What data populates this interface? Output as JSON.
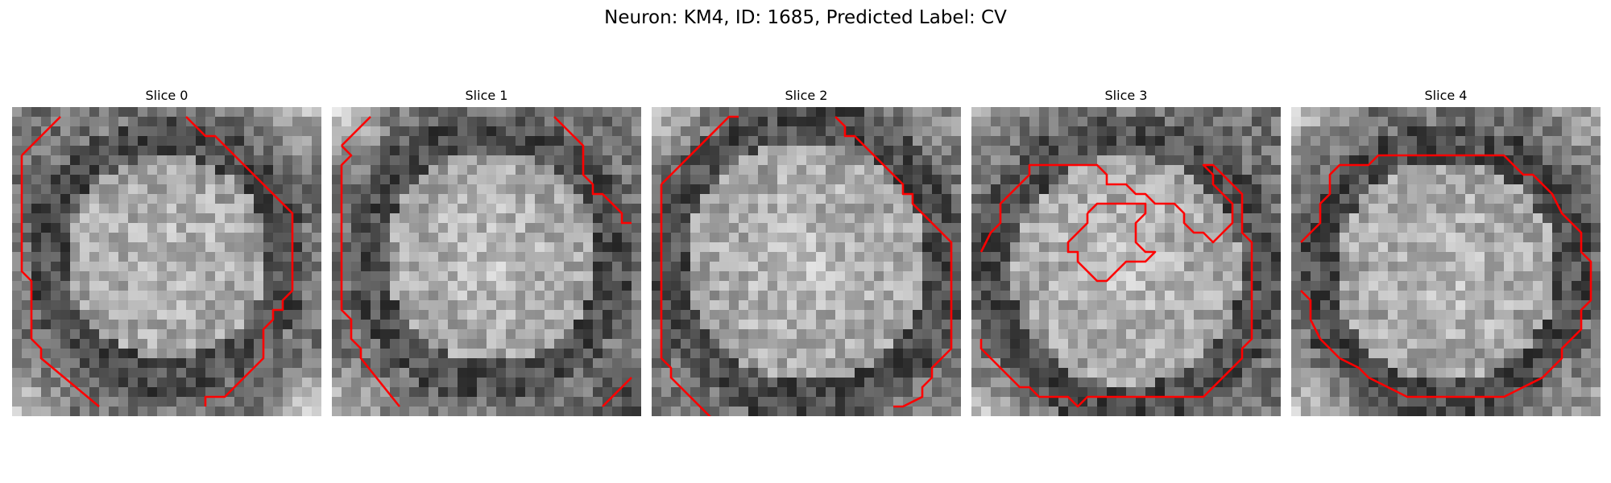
{
  "figure": {
    "title": "Neuron: KM4, ID: 1685, Predicted Label: CV"
  },
  "colors": {
    "contour": "#ff0000",
    "background": "#ffffff"
  },
  "panels": [
    {
      "title": "Slice 0"
    },
    {
      "title": "Slice 1"
    },
    {
      "title": "Slice 2"
    },
    {
      "title": "Slice 3"
    },
    {
      "title": "Slice 4"
    }
  ]
}
